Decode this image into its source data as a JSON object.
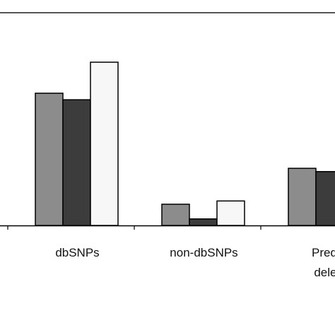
{
  "chart_data": {
    "type": "bar",
    "categories": [
      [
        "dbSNPs"
      ],
      [
        "non-dbSNPs"
      ],
      [
        "Predict",
        "delete"
      ]
    ],
    "series": [
      {
        "color": "#8c8c8c",
        "values": [
          0.81,
          0.13,
          0.35
        ]
      },
      {
        "color": "#3c3c3c",
        "values": [
          0.77,
          0.04,
          0.33
        ]
      },
      {
        "color": "#f7f7f7",
        "values": [
          1.0,
          0.15,
          null
        ]
      }
    ],
    "ylim": [
      0,
      1.1
    ],
    "grid": false,
    "legend": "none"
  }
}
